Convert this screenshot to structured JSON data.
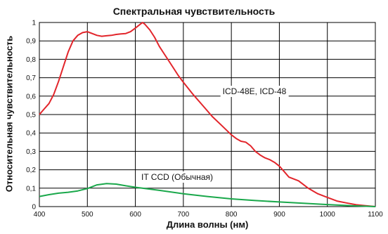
{
  "chart_data": {
    "type": "line",
    "title": "Спектральная чувствительность",
    "xlabel": "Длина волны (нм)",
    "ylabel": "Относительная чувствительность",
    "xlim": [
      400,
      1100
    ],
    "ylim": [
      0,
      1
    ],
    "x_ticks": [
      "400",
      "500",
      "600",
      "700",
      "800",
      "900",
      "1000",
      "1100"
    ],
    "y_ticks": [
      "0",
      "0,1",
      "0,2",
      "0,3",
      "0,4",
      "0,5",
      "0,6",
      "0,7",
      "0,8",
      "0,9",
      "1"
    ],
    "grid": true,
    "series": [
      {
        "name": "ICD-48E, ICD-48",
        "color": "#e2252b",
        "x": [
          400,
          410,
          420,
          430,
          440,
          450,
          460,
          470,
          480,
          490,
          500,
          510,
          520,
          530,
          540,
          550,
          560,
          570,
          580,
          590,
          600,
          610,
          615,
          620,
          630,
          640,
          650,
          660,
          670,
          680,
          690,
          700,
          720,
          740,
          760,
          780,
          800,
          810,
          820,
          830,
          840,
          850,
          860,
          870,
          880,
          890,
          900,
          910,
          920,
          930,
          940,
          950,
          960,
          970,
          980,
          990,
          1000,
          1020,
          1040,
          1060,
          1080,
          1100
        ],
        "values": [
          0.5,
          0.53,
          0.56,
          0.61,
          0.68,
          0.76,
          0.84,
          0.9,
          0.93,
          0.945,
          0.95,
          0.94,
          0.93,
          0.925,
          0.928,
          0.93,
          0.935,
          0.938,
          0.94,
          0.95,
          0.97,
          0.99,
          1.0,
          0.99,
          0.96,
          0.92,
          0.87,
          0.83,
          0.79,
          0.75,
          0.71,
          0.675,
          0.61,
          0.55,
          0.49,
          0.44,
          0.39,
          0.37,
          0.355,
          0.35,
          0.33,
          0.3,
          0.28,
          0.265,
          0.255,
          0.24,
          0.22,
          0.19,
          0.16,
          0.15,
          0.14,
          0.12,
          0.1,
          0.085,
          0.07,
          0.06,
          0.05,
          0.03,
          0.02,
          0.01,
          0.005,
          0.0
        ]
      },
      {
        "name": "IT CCD (Обычная)",
        "color": "#1aa84b",
        "x": [
          400,
          420,
          440,
          460,
          480,
          500,
          520,
          540,
          560,
          580,
          600,
          650,
          700,
          750,
          800,
          850,
          900,
          950,
          1000,
          1050,
          1100
        ],
        "values": [
          0.055,
          0.065,
          0.073,
          0.078,
          0.085,
          0.098,
          0.118,
          0.125,
          0.122,
          0.113,
          0.105,
          0.088,
          0.07,
          0.055,
          0.042,
          0.033,
          0.025,
          0.018,
          0.011,
          0.005,
          0.0
        ]
      }
    ],
    "annotations": [
      {
        "text": "ICD-48E, ICD-48",
        "series": 0
      },
      {
        "text": "IT CCD (Обычная)",
        "series": 1
      }
    ]
  }
}
